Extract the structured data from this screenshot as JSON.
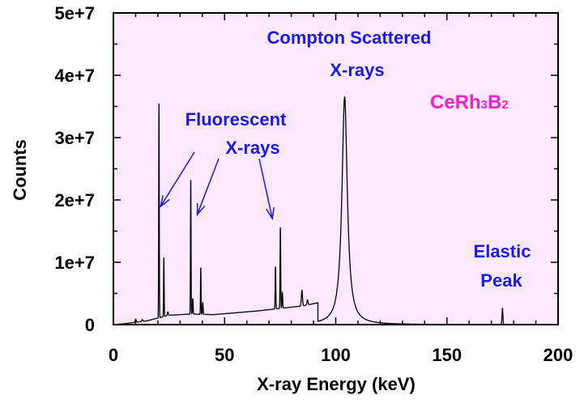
{
  "chart_data": {
    "type": "line",
    "title": "",
    "xlabel": "X-ray Energy (keV)",
    "ylabel": "Counts",
    "xlim": [
      0,
      200
    ],
    "ylim": [
      0,
      50000000
    ],
    "x_ticks": [
      0,
      50,
      100,
      150,
      200
    ],
    "x_tick_labels": [
      "0",
      "50",
      "100",
      "150",
      "200"
    ],
    "y_ticks": [
      0,
      10000000,
      20000000,
      30000000,
      40000000,
      50000000
    ],
    "y_tick_labels": [
      "0",
      "1e+7",
      "2e+7",
      "3e+7",
      "4e+7",
      "5e+7"
    ],
    "grid": false,
    "background_color": "#fbe8fb",
    "line_color": "#000000",
    "annotation_color": "#1a1ae6",
    "sample_color": "#ee22cc",
    "sample": {
      "base": "CeRh",
      "sub1": "3",
      "mid": "B",
      "sub2": "2"
    },
    "annotations": {
      "compton": [
        "Compton Scattered",
        "X-rays"
      ],
      "fluorescent": [
        "Fluorescent",
        "X-rays"
      ],
      "elastic": [
        "Elastic",
        "Peak"
      ]
    },
    "arrow_targets_x": [
      20.5,
      37.0,
      71.5
    ],
    "baseline": [
      {
        "x": 0,
        "y": 0
      },
      {
        "x": 5,
        "y": 150000
      },
      {
        "x": 15,
        "y": 600000
      },
      {
        "x": 25,
        "y": 1500000
      },
      {
        "x": 35,
        "y": 1700000
      },
      {
        "x": 45,
        "y": 1600000
      },
      {
        "x": 55,
        "y": 1900000
      },
      {
        "x": 65,
        "y": 2200000
      },
      {
        "x": 75,
        "y": 2600000
      },
      {
        "x": 85,
        "y": 3000000
      },
      {
        "x": 92,
        "y": 3500000
      },
      {
        "x": 200,
        "y": 0
      }
    ],
    "peaks": [
      {
        "x": 10.0,
        "y": 500000,
        "w": 0.25
      },
      {
        "x": 13.0,
        "y": 300000,
        "w": 0.25
      },
      {
        "x": 20.5,
        "y": 34500000,
        "w": 0.12
      },
      {
        "x": 22.7,
        "y": 9500000,
        "w": 0.12
      },
      {
        "x": 24.5,
        "y": 600000,
        "w": 0.2
      },
      {
        "x": 34.8,
        "y": 21500000,
        "w": 0.12
      },
      {
        "x": 35.7,
        "y": 2500000,
        "w": 0.15
      },
      {
        "x": 39.3,
        "y": 7500000,
        "w": 0.12
      },
      {
        "x": 40.2,
        "y": 1800000,
        "w": 0.15
      },
      {
        "x": 72.9,
        "y": 6800000,
        "w": 0.14
      },
      {
        "x": 75.1,
        "y": 13000000,
        "w": 0.14
      },
      {
        "x": 76.0,
        "y": 2500000,
        "w": 0.15
      },
      {
        "x": 84.8,
        "y": 2500000,
        "w": 0.25
      },
      {
        "x": 87.3,
        "y": 800000,
        "w": 0.25
      },
      {
        "x": 175.0,
        "y": 2600000,
        "w": 0.2
      }
    ],
    "compton_peak": {
      "x": 104.0,
      "y": 36500000,
      "gamma": 1.45,
      "tail_x": 95,
      "tail_y": 2700000
    }
  }
}
